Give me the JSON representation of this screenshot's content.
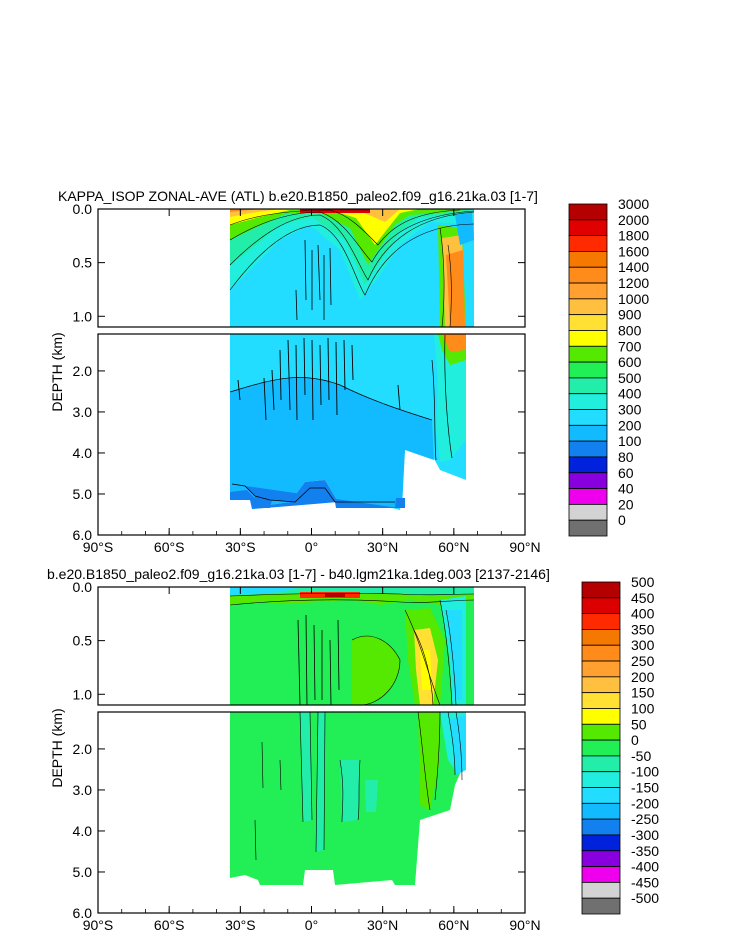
{
  "chart_data": [
    {
      "type": "heatmap",
      "title": "KAPPA_ISOP ZONAL-AVE (ATL) b.e20.B1850_paleo2.f09_g16.21ka.03 [1-7]",
      "ylabel": "DEPTH (km)",
      "xlabel": "",
      "x_ticks": [
        "90°S",
        "60°S",
        "30°S",
        "0°",
        "30°N",
        "60°N",
        "90°N"
      ],
      "x_tick_values": [
        -90,
        -60,
        -30,
        0,
        30,
        60,
        90
      ],
      "y_ticks_upper": [
        "0.0",
        "0.5",
        "1.0"
      ],
      "y_ticks_upper_values": [
        0.0,
        0.5,
        1.0
      ],
      "y_ticks_lower": [
        "2.0",
        "3.0",
        "4.0",
        "5.0",
        "6.0"
      ],
      "y_ticks_lower_values": [
        2.0,
        3.0,
        4.0,
        5.0,
        6.0
      ],
      "ylim_upper": [
        0.0,
        1.1
      ],
      "ylim_lower": [
        1.1,
        6.0
      ],
      "xlim": [
        -90,
        90
      ],
      "colorbar_labels": [
        "3000",
        "2000",
        "1800",
        "1600",
        "1400",
        "1200",
        "1000",
        "900",
        "800",
        "700",
        "600",
        "500",
        "400",
        "300",
        "200",
        "100",
        "80",
        "60",
        "40",
        "20",
        "0"
      ],
      "colorbar_colors": [
        "#b40000",
        "#e10000",
        "#ff2a00",
        "#f57800",
        "#ff8c1a",
        "#ffa030",
        "#ffc040",
        "#ffe033",
        "#ffff00",
        "#55e800",
        "#22ee55",
        "#22eeaa",
        "#22eedd",
        "#22ddff",
        "#12bbff",
        "#1280ee",
        "#0022dd",
        "#8800dd",
        "#ee00ee",
        "#d3d3d3",
        "#707070"
      ]
    },
    {
      "type": "heatmap",
      "title": "b.e20.B1850_paleo2.f09_g16.21ka.03 [1-7] - b40.lgm21ka.1deg.003 [2137-2146]",
      "ylabel": "DEPTH (km)",
      "xlabel": "",
      "x_ticks": [
        "90°S",
        "60°S",
        "30°S",
        "0°",
        "30°N",
        "60°N",
        "90°N"
      ],
      "x_tick_values": [
        -90,
        -60,
        -30,
        0,
        30,
        60,
        90
      ],
      "y_ticks_upper": [
        "0.0",
        "0.5",
        "1.0"
      ],
      "y_ticks_upper_values": [
        0.0,
        0.5,
        1.0
      ],
      "y_ticks_lower": [
        "2.0",
        "3.0",
        "4.0",
        "5.0",
        "6.0"
      ],
      "y_ticks_lower_values": [
        2.0,
        3.0,
        4.0,
        5.0,
        6.0
      ],
      "ylim_upper": [
        0.0,
        1.1
      ],
      "ylim_lower": [
        1.1,
        6.0
      ],
      "xlim": [
        -90,
        90
      ],
      "colorbar_labels": [
        "500",
        "450",
        "400",
        "350",
        "300",
        "250",
        "200",
        "150",
        "100",
        "50",
        "0",
        "-50",
        "-100",
        "-150",
        "-200",
        "-250",
        "-300",
        "-350",
        "-400",
        "-450",
        "-500"
      ],
      "colorbar_colors": [
        "#b40000",
        "#dd0000",
        "#ff2a00",
        "#f57800",
        "#ff8c1a",
        "#ffa030",
        "#ffc040",
        "#ffe033",
        "#ffff00",
        "#55e800",
        "#22ee55",
        "#22eeaa",
        "#22eedd",
        "#22ddff",
        "#12bbff",
        "#1280ee",
        "#0022dd",
        "#8800dd",
        "#ee00ee",
        "#d3d3d3",
        "#707070"
      ]
    }
  ]
}
